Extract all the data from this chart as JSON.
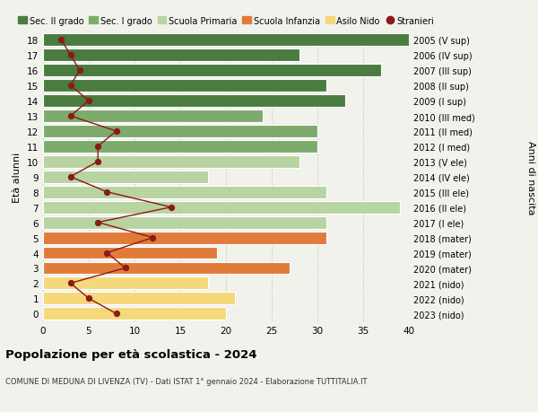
{
  "ages": [
    18,
    17,
    16,
    15,
    14,
    13,
    12,
    11,
    10,
    9,
    8,
    7,
    6,
    5,
    4,
    3,
    2,
    1,
    0
  ],
  "right_labels": [
    "2005 (V sup)",
    "2006 (IV sup)",
    "2007 (III sup)",
    "2008 (II sup)",
    "2009 (I sup)",
    "2010 (III med)",
    "2011 (II med)",
    "2012 (I med)",
    "2013 (V ele)",
    "2014 (IV ele)",
    "2015 (III ele)",
    "2016 (II ele)",
    "2017 (I ele)",
    "2018 (mater)",
    "2019 (mater)",
    "2020 (mater)",
    "2021 (nido)",
    "2022 (nido)",
    "2023 (nido)"
  ],
  "bar_values": [
    40,
    28,
    37,
    31,
    33,
    24,
    30,
    30,
    28,
    18,
    31,
    39,
    31,
    31,
    19,
    27,
    18,
    21,
    20
  ],
  "bar_colors": [
    "#4a7c3f",
    "#4a7c3f",
    "#4a7c3f",
    "#4a7c3f",
    "#4a7c3f",
    "#7dab6b",
    "#7dab6b",
    "#7dab6b",
    "#b8d4a0",
    "#b8d4a0",
    "#b8d4a0",
    "#b8d4a0",
    "#b8d4a0",
    "#e07b3a",
    "#e07b3a",
    "#e07b3a",
    "#f5d87a",
    "#f5d87a",
    "#f5d87a"
  ],
  "stranieri_values": [
    2,
    3,
    4,
    3,
    5,
    3,
    8,
    6,
    6,
    3,
    7,
    14,
    6,
    12,
    7,
    9,
    3,
    5,
    8
  ],
  "title": "Popolazione per età scolastica - 2024",
  "subtitle": "COMUNE DI MEDUNA DI LIVENZA (TV) - Dati ISTAT 1° gennaio 2024 - Elaborazione TUTTITALIA.IT",
  "ylabel": "Età alunni",
  "right_ylabel": "Anni di nascita",
  "xlim": [
    0,
    40
  ],
  "xticks": [
    0,
    5,
    10,
    15,
    20,
    25,
    30,
    35,
    40
  ],
  "legend_items": [
    {
      "label": "Sec. II grado",
      "color": "#4a7c3f"
    },
    {
      "label": "Sec. I grado",
      "color": "#7dab6b"
    },
    {
      "label": "Scuola Primaria",
      "color": "#b8d4a0"
    },
    {
      "label": "Scuola Infanzia",
      "color": "#e07b3a"
    },
    {
      "label": "Asilo Nido",
      "color": "#f5d87a"
    },
    {
      "label": "Stranieri",
      "color": "#8b1a1a"
    }
  ],
  "bg_color": "#f2f2ed",
  "bar_height": 0.82,
  "stranieri_line_color": "#8b1a1a",
  "stranieri_dot_color": "#8b1a1a"
}
